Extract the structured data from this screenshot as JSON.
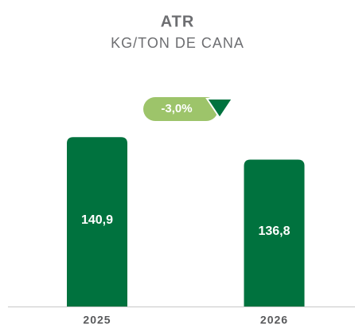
{
  "chart_data": {
    "type": "bar",
    "title": "ATR",
    "subtitle": "KG/TON DE CANA",
    "categories": [
      "2025",
      "2026"
    ],
    "values": [
      140.9,
      136.8
    ],
    "value_labels": [
      "140,9",
      "136,8"
    ],
    "color": "#00723e",
    "ylim": [
      110,
      145
    ],
    "annotation": "-3,0%",
    "annotation_color": "#9dc46a",
    "annotation_arrow_color": "#00723e"
  }
}
